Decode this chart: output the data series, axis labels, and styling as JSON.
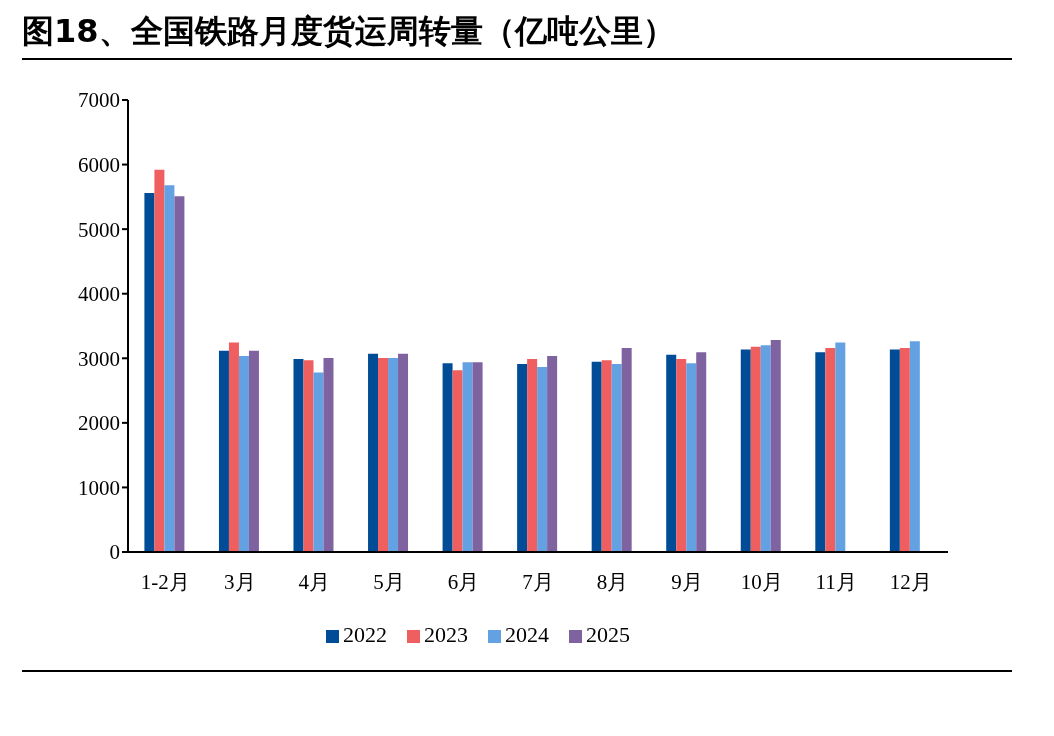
{
  "chart_data": {
    "type": "bar",
    "title": "图18、全国铁路月度货运周转量（亿吨公里）",
    "categories": [
      "1-2月",
      "3月",
      "4月",
      "5月",
      "6月",
      "7月",
      "8月",
      "9月",
      "10月",
      "11月",
      "12月"
    ],
    "series": [
      {
        "name": "2022",
        "color": "#004c97",
        "values": [
          5560,
          3115,
          2990,
          3070,
          2925,
          2910,
          2945,
          3055,
          3135,
          3095,
          3135
        ]
      },
      {
        "name": "2023",
        "color": "#ef5f5f",
        "values": [
          5920,
          3245,
          2970,
          3005,
          2815,
          2990,
          2970,
          2990,
          3180,
          3160,
          3160
        ]
      },
      {
        "name": "2024",
        "color": "#64a1e2",
        "values": [
          5680,
          3035,
          2780,
          3005,
          2940,
          2865,
          2910,
          2925,
          3200,
          3245,
          3265
        ]
      },
      {
        "name": "2025",
        "color": "#7f63a1",
        "values": [
          5510,
          3115,
          3005,
          3070,
          2940,
          3035,
          3160,
          3095,
          3285,
          null,
          null
        ]
      }
    ],
    "ylim": [
      0,
      7000
    ],
    "yticks": [
      0,
      1000,
      2000,
      3000,
      4000,
      5000,
      6000,
      7000
    ],
    "grid": false,
    "legend": "bottom"
  }
}
